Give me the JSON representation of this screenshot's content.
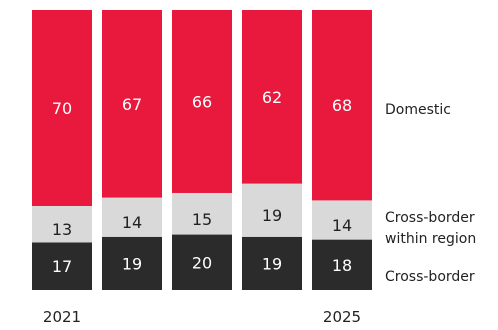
{
  "chart_data": {
    "type": "bar",
    "stacked": true,
    "normalized_percent": true,
    "categories": [
      "2021",
      "",
      "",
      "",
      "2025"
    ],
    "series": [
      {
        "name": "Cross-border",
        "values": [
          17,
          19,
          20,
          19,
          18
        ],
        "color": "#2b2b2b",
        "label_color": "#ffffff"
      },
      {
        "name": "Cross-border within region",
        "values": [
          13,
          14,
          15,
          19,
          14
        ],
        "color": "#d9d9d9",
        "label_color": "#222222"
      },
      {
        "name": "Domestic",
        "values": [
          70,
          67,
          66,
          62,
          68
        ],
        "color": "#e8193c",
        "label_color": "#ffffff"
      }
    ],
    "legend_position": "right",
    "grid": false
  }
}
